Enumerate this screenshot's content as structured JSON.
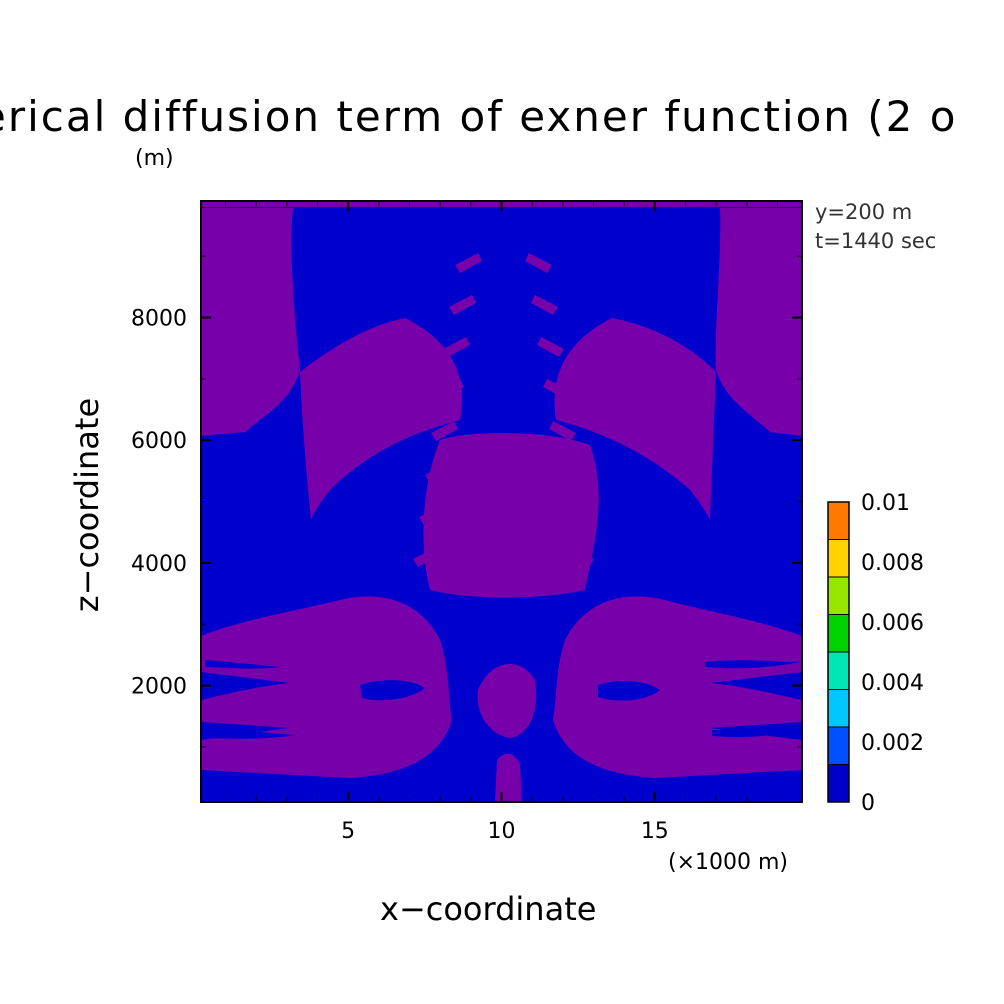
{
  "chart_data": {
    "type": "heatmap",
    "title": "erical diffusion term of exner function (2 o",
    "xlabel": "x−coordinate",
    "ylabel": "z−coordinate",
    "x_unit": "(×1000 m)",
    "y_unit": "(m)",
    "annotations": [
      "y=200 m",
      "t=1440 sec"
    ],
    "xlim": [
      0.2,
      19.8
    ],
    "ylim": [
      100,
      9900
    ],
    "x_ticks": [
      5,
      10,
      15
    ],
    "y_ticks": [
      2000,
      4000,
      6000,
      8000
    ],
    "x_tick_labels": [
      "5",
      "10",
      "15"
    ],
    "y_tick_labels": [
      "2000",
      "4000",
      "6000",
      "8000"
    ],
    "colorbar": {
      "levels": [
        0,
        0.00125,
        0.0025,
        0.00375,
        0.005,
        0.00625,
        0.0075,
        0.00875,
        0.01
      ],
      "labels": [
        "0.01",
        "0.008",
        "0.006",
        "0.004",
        "0.002",
        "0"
      ],
      "label_values": [
        0.01,
        0.008,
        0.006,
        0.004,
        0.002,
        0
      ],
      "colors": [
        "#0000c8",
        "#0050ff",
        "#00c8ff",
        "#00e6b4",
        "#00d200",
        "#96e600",
        "#ffd200",
        "#ff7800",
        "#ff1e1e"
      ]
    },
    "field_colors": {
      "background": "#0000cd",
      "feature": "#7800aa"
    },
    "field_value_range": [
      0,
      0.00125
    ],
    "grid": false
  }
}
